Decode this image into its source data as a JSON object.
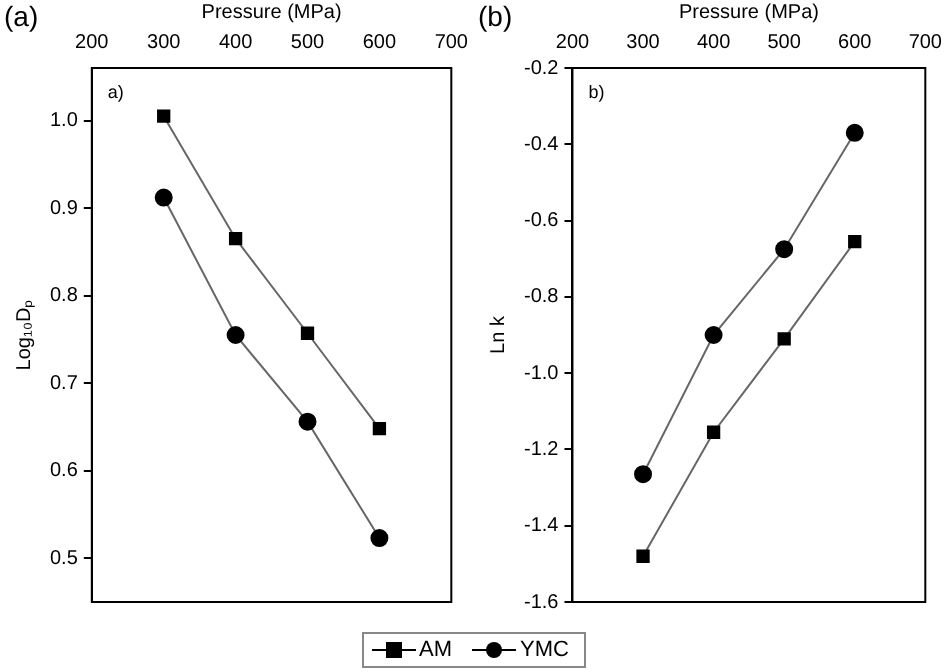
{
  "chart_data": [
    {
      "type": "line",
      "title": "(a)",
      "xlabel": "Pressure (MPa)",
      "ylabel": "Log₁₀Dₚ",
      "annotations": [
        "a)"
      ],
      "x": [
        300,
        400,
        500,
        600
      ],
      "series": [
        {
          "name": "AM",
          "color": "#000000",
          "marker": "square",
          "values": [
            1.005,
            0.865,
            0.757,
            0.648
          ]
        },
        {
          "name": "YMC",
          "color": "#000000",
          "marker": "circle",
          "values": [
            0.912,
            0.755,
            0.656,
            0.523
          ]
        }
      ],
      "xlim": [
        200,
        700
      ],
      "xticks": [
        200,
        300,
        400,
        500,
        600,
        700
      ],
      "ylim": [
        0.45,
        1.06
      ],
      "yticks": [
        0.5,
        0.6,
        0.7,
        0.8,
        0.9,
        {
          "value": 1.0,
          "label": "1.0"
        }
      ],
      "grid": false,
      "legend": "bottom"
    },
    {
      "type": "line",
      "title": "(b)",
      "xlabel": "Pressure (MPa)",
      "ylabel": "Ln k",
      "annotations": [
        "b)"
      ],
      "x": [
        300,
        400,
        500,
        600
      ],
      "series": [
        {
          "name": "AM",
          "color": "#000000",
          "marker": "square",
          "values": [
            -1.48,
            -1.155,
            -0.91,
            -0.655
          ]
        },
        {
          "name": "YMC",
          "color": "#000000",
          "marker": "circle",
          "values": [
            -1.265,
            -0.9,
            -0.675,
            -0.37
          ]
        }
      ],
      "xlim": [
        200,
        700
      ],
      "xticks": [
        200,
        300,
        400,
        500,
        600,
        700
      ],
      "ylim": [
        -1.6,
        -0.2
      ],
      "yticks": [
        -1.6,
        -1.4,
        -1.2,
        {
          "value": -1.0,
          "label": "-1.0"
        },
        -0.8,
        -0.6,
        -0.4,
        -0.2
      ],
      "grid": false,
      "legend": "bottom"
    }
  ]
}
